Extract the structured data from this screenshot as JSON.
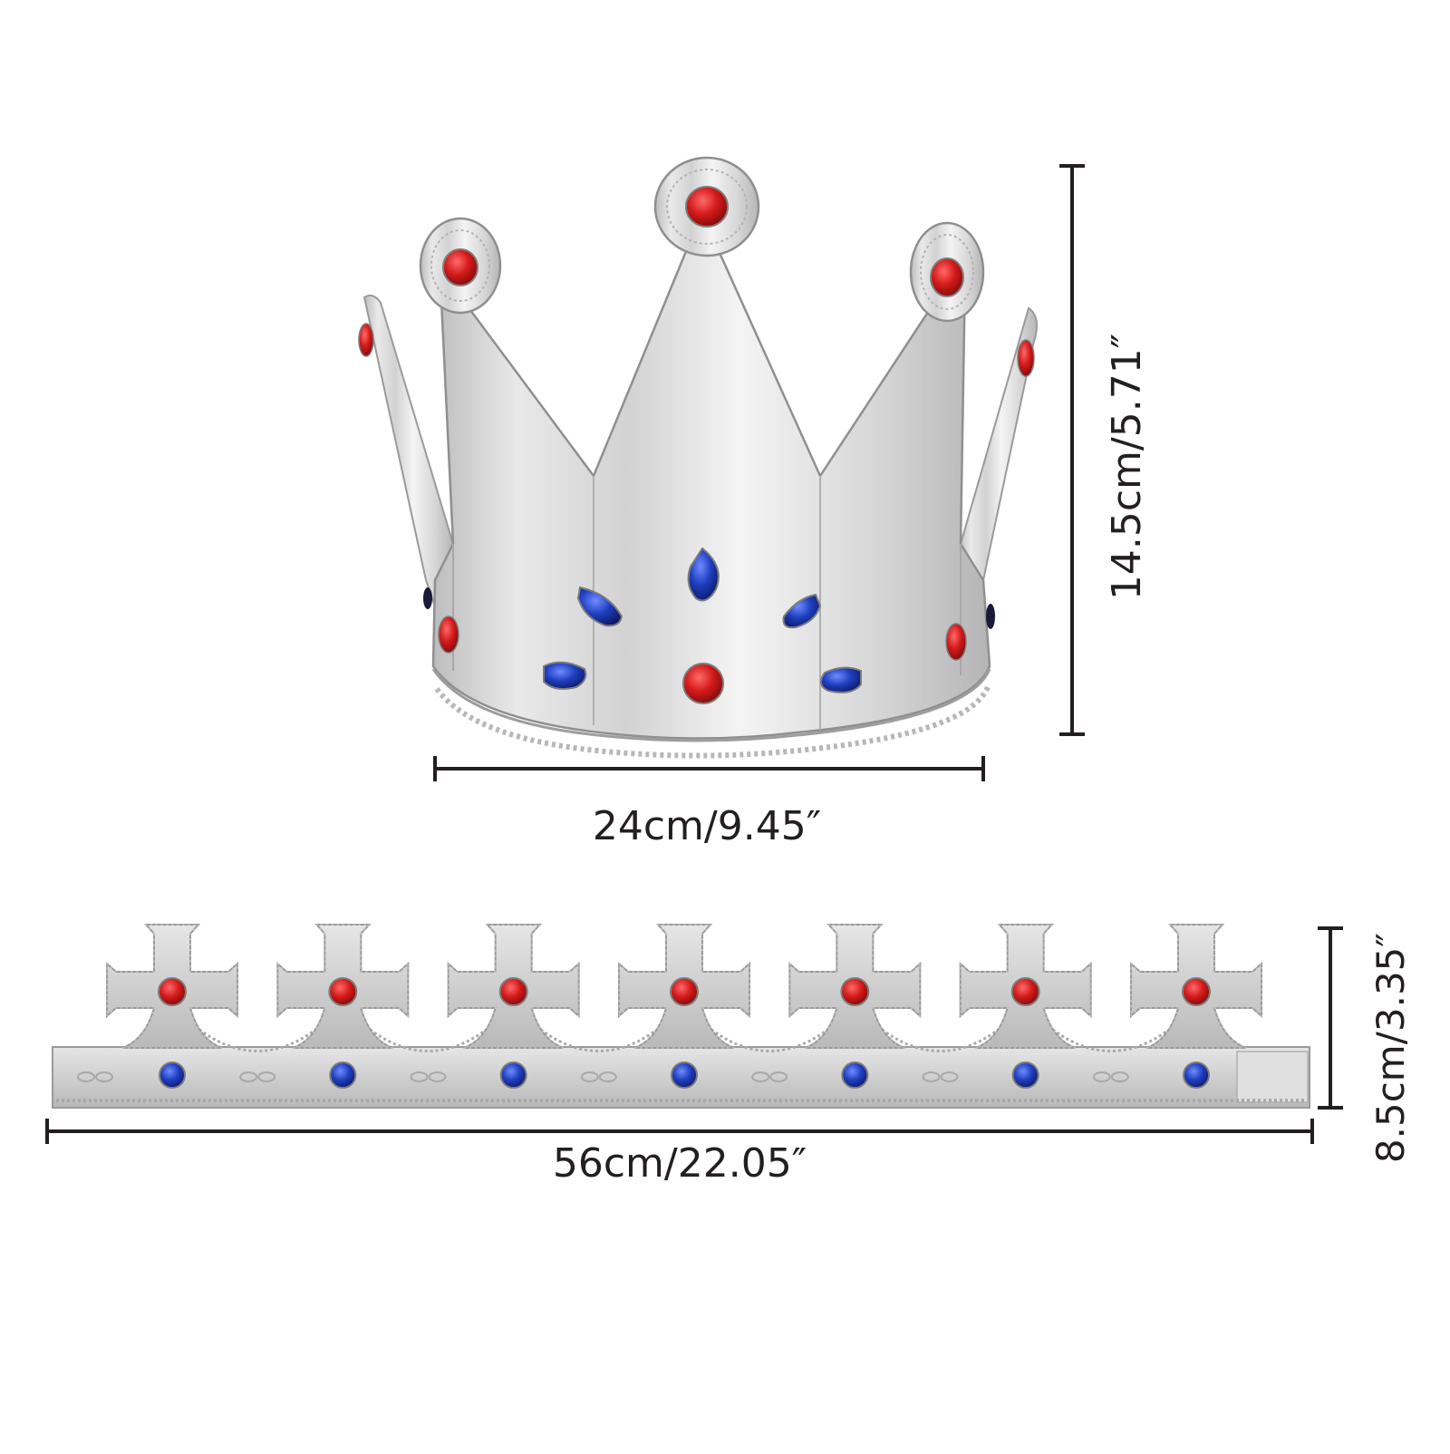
{
  "colors": {
    "silver_light": "#f2f2f2",
    "silver_mid": "#c9c9c9",
    "silver_dark": "#9a9a9a",
    "ruby": "#c8161d",
    "sapphire": "#1f3fb0",
    "dimension_line": "#231f20"
  },
  "product_images": {
    "crown": {
      "icon": "silver-crown-icon"
    },
    "band": {
      "icon": "crown-band-icon",
      "crosses": 7
    }
  },
  "dimensions": {
    "crown_width": "24cm/9.45″",
    "crown_height": "14.5cm/5.71″",
    "band_width": "56cm/22.05″",
    "band_height": "8.5cm/3.35″"
  }
}
